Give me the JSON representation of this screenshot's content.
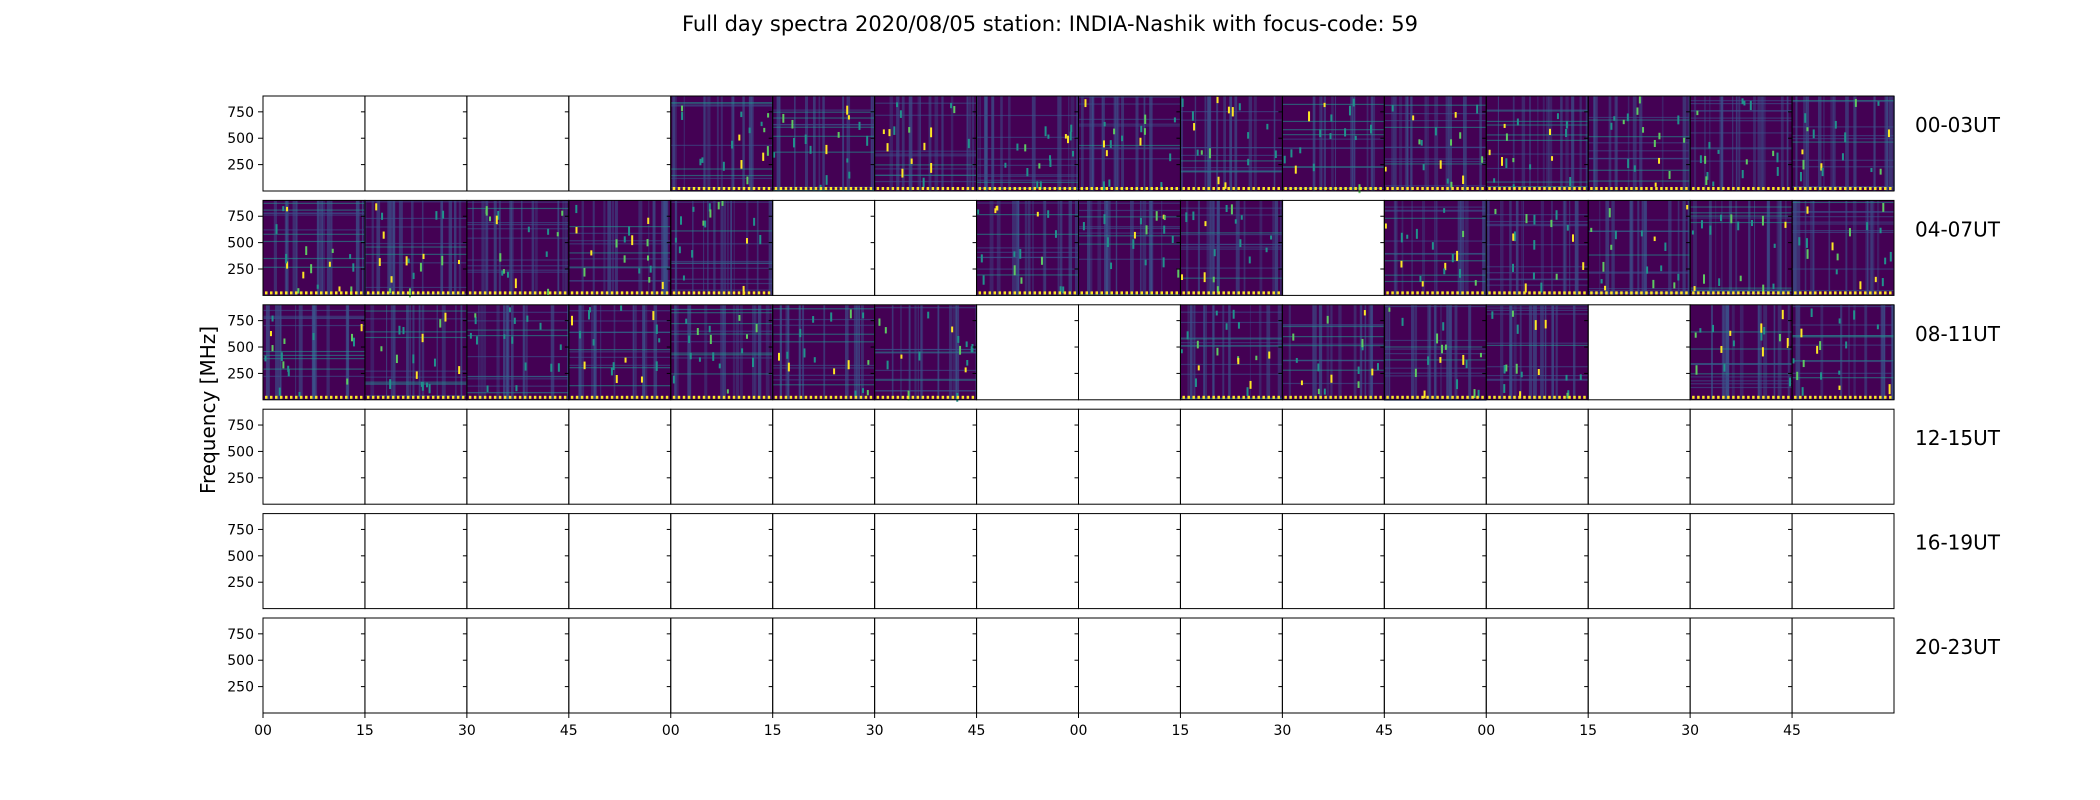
{
  "title": "Full day spectra 2020/08/05 station: INDIA-Nashik with focus-code: 59",
  "chart_data": {
    "type": "heatmap",
    "title": "Full day spectra 2020/08/05 station: INDIA-Nashik with focus-code: 59",
    "ylabel": "Frequency [MHz]",
    "xlabel": "",
    "yticks": [
      "750",
      "500",
      "250"
    ],
    "ytick_values": [
      750,
      500,
      250
    ],
    "ylim": [
      0,
      900
    ],
    "xticks": [
      "00",
      "15",
      "30",
      "45",
      "00",
      "15",
      "30",
      "45",
      "00",
      "15",
      "30",
      "45",
      "00",
      "15",
      "30",
      "45"
    ],
    "panels_per_row": 16,
    "colormap": [
      "#440154",
      "#3b528b",
      "#21918c",
      "#5ec962",
      "#fde725"
    ],
    "rows": [
      {
        "label": "00-03UT",
        "has_data": [
          0,
          0,
          0,
          0,
          1,
          1,
          1,
          1,
          1,
          1,
          1,
          1,
          1,
          1,
          1,
          1
        ]
      },
      {
        "label": "04-07UT",
        "has_data": [
          1,
          1,
          1,
          1,
          1,
          0,
          0,
          1,
          1,
          1,
          0,
          1,
          1,
          1,
          1,
          1
        ]
      },
      {
        "label": "08-11UT",
        "has_data": [
          1,
          1,
          1,
          1,
          1,
          1,
          1,
          0,
          0,
          1,
          1,
          1,
          1,
          0,
          1,
          1
        ]
      },
      {
        "label": "12-15UT",
        "has_data": [
          0,
          0,
          0,
          0,
          0,
          0,
          0,
          0,
          0,
          0,
          0,
          0,
          0,
          0,
          0,
          0
        ]
      },
      {
        "label": "16-19UT",
        "has_data": [
          0,
          0,
          0,
          0,
          0,
          0,
          0,
          0,
          0,
          0,
          0,
          0,
          0,
          0,
          0,
          0
        ]
      },
      {
        "label": "20-23UT",
        "has_data": [
          0,
          0,
          0,
          0,
          0,
          0,
          0,
          0,
          0,
          0,
          0,
          0,
          0,
          0,
          0,
          0
        ]
      }
    ]
  }
}
